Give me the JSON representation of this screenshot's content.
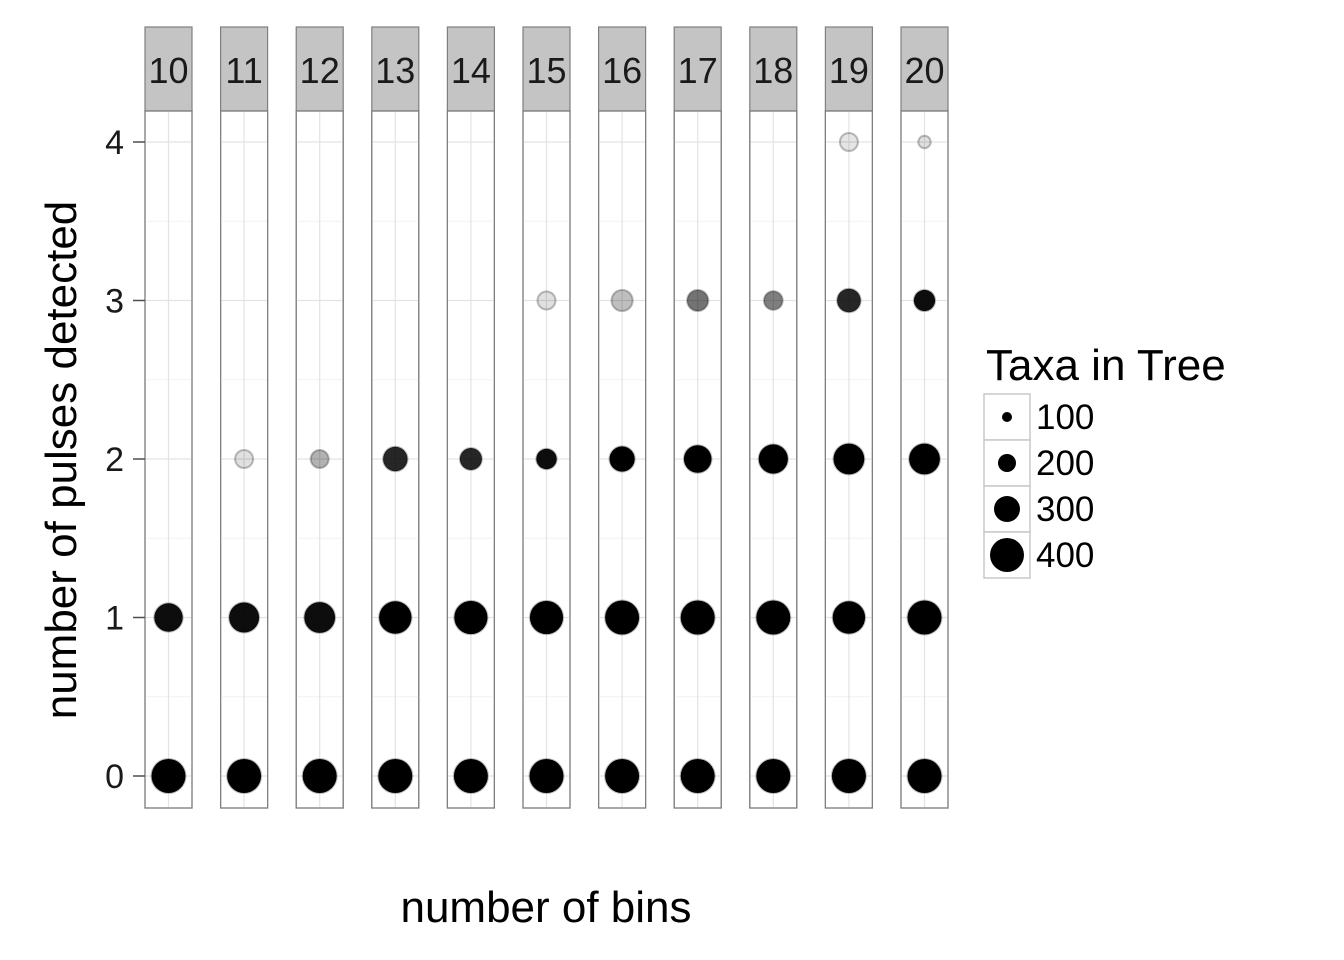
{
  "chart_data": {
    "type": "scatter",
    "facet_variable_values": [
      "10",
      "11",
      "12",
      "13",
      "14",
      "15",
      "16",
      "17",
      "18",
      "19",
      "20"
    ],
    "xlabel": "number of bins",
    "ylabel": "number of pulses detected",
    "ylim": [
      -0.2,
      4.2
    ],
    "yticks": [
      0,
      1,
      2,
      3,
      4
    ],
    "grid": true,
    "legend": {
      "title": "Taxa in Tree",
      "position": "right",
      "items": [
        {
          "label": "100",
          "value": 100
        },
        {
          "label": "200",
          "value": 200
        },
        {
          "label": "300",
          "value": 300
        },
        {
          "label": "400",
          "value": 400
        }
      ]
    },
    "points": [
      {
        "bins": "10",
        "pulses": 0,
        "taxa": 400,
        "opacity": 1.0
      },
      {
        "bins": "10",
        "pulses": 1,
        "taxa": 330,
        "opacity": 0.95
      },
      {
        "bins": "11",
        "pulses": 0,
        "taxa": 400,
        "opacity": 1.0
      },
      {
        "bins": "11",
        "pulses": 1,
        "taxa": 350,
        "opacity": 0.95
      },
      {
        "bins": "11",
        "pulses": 2,
        "taxa": 200,
        "opacity": 0.12
      },
      {
        "bins": "12",
        "pulses": 0,
        "taxa": 400,
        "opacity": 1.0
      },
      {
        "bins": "12",
        "pulses": 1,
        "taxa": 360,
        "opacity": 0.95
      },
      {
        "bins": "12",
        "pulses": 2,
        "taxa": 200,
        "opacity": 0.3
      },
      {
        "bins": "13",
        "pulses": 0,
        "taxa": 400,
        "opacity": 1.0
      },
      {
        "bins": "13",
        "pulses": 1,
        "taxa": 380,
        "opacity": 1.0
      },
      {
        "bins": "13",
        "pulses": 2,
        "taxa": 280,
        "opacity": 0.85
      },
      {
        "bins": "14",
        "pulses": 0,
        "taxa": 400,
        "opacity": 1.0
      },
      {
        "bins": "14",
        "pulses": 1,
        "taxa": 390,
        "opacity": 1.0
      },
      {
        "bins": "14",
        "pulses": 2,
        "taxa": 250,
        "opacity": 0.85
      },
      {
        "bins": "15",
        "pulses": 0,
        "taxa": 400,
        "opacity": 1.0
      },
      {
        "bins": "15",
        "pulses": 1,
        "taxa": 390,
        "opacity": 1.0
      },
      {
        "bins": "15",
        "pulses": 2,
        "taxa": 230,
        "opacity": 0.95
      },
      {
        "bins": "15",
        "pulses": 3,
        "taxa": 200,
        "opacity": 0.12
      },
      {
        "bins": "16",
        "pulses": 0,
        "taxa": 400,
        "opacity": 1.0
      },
      {
        "bins": "16",
        "pulses": 1,
        "taxa": 400,
        "opacity": 1.0
      },
      {
        "bins": "16",
        "pulses": 2,
        "taxa": 290,
        "opacity": 1.0
      },
      {
        "bins": "16",
        "pulses": 3,
        "taxa": 240,
        "opacity": 0.25
      },
      {
        "bins": "17",
        "pulses": 0,
        "taxa": 400,
        "opacity": 1.0
      },
      {
        "bins": "17",
        "pulses": 1,
        "taxa": 400,
        "opacity": 1.0
      },
      {
        "bins": "17",
        "pulses": 2,
        "taxa": 320,
        "opacity": 1.0
      },
      {
        "bins": "17",
        "pulses": 3,
        "taxa": 240,
        "opacity": 0.55
      },
      {
        "bins": "18",
        "pulses": 0,
        "taxa": 400,
        "opacity": 1.0
      },
      {
        "bins": "18",
        "pulses": 1,
        "taxa": 400,
        "opacity": 1.0
      },
      {
        "bins": "18",
        "pulses": 2,
        "taxa": 340,
        "opacity": 1.0
      },
      {
        "bins": "18",
        "pulses": 3,
        "taxa": 210,
        "opacity": 0.5
      },
      {
        "bins": "19",
        "pulses": 0,
        "taxa": 400,
        "opacity": 1.0
      },
      {
        "bins": "19",
        "pulses": 1,
        "taxa": 380,
        "opacity": 1.0
      },
      {
        "bins": "19",
        "pulses": 2,
        "taxa": 360,
        "opacity": 1.0
      },
      {
        "bins": "19",
        "pulses": 3,
        "taxa": 270,
        "opacity": 0.85
      },
      {
        "bins": "19",
        "pulses": 4,
        "taxa": 200,
        "opacity": 0.1
      },
      {
        "bins": "20",
        "pulses": 0,
        "taxa": 400,
        "opacity": 1.0
      },
      {
        "bins": "20",
        "pulses": 1,
        "taxa": 400,
        "opacity": 1.0
      },
      {
        "bins": "20",
        "pulses": 2,
        "taxa": 360,
        "opacity": 1.0
      },
      {
        "bins": "20",
        "pulses": 3,
        "taxa": 240,
        "opacity": 0.95
      },
      {
        "bins": "20",
        "pulses": 4,
        "taxa": 130,
        "opacity": 0.12
      }
    ]
  }
}
